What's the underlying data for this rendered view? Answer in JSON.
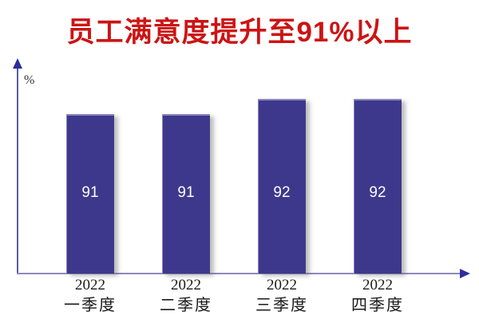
{
  "title": {
    "text": "员工满意度提升至91%以上",
    "color": "#cc1414"
  },
  "chart_data": {
    "type": "bar",
    "categories": [
      {
        "year": "2022",
        "quarter": "一季度"
      },
      {
        "year": "2022",
        "quarter": "二季度"
      },
      {
        "year": "2022",
        "quarter": "三季度"
      },
      {
        "year": "2022",
        "quarter": "四季度"
      }
    ],
    "values": [
      91,
      91,
      92,
      92
    ],
    "title": "员工满意度提升至91%以上",
    "xlabel": "",
    "ylabel": "%",
    "ylim": [
      80.5,
      94
    ],
    "grid": false,
    "legend": "none",
    "value_labels_shown": true,
    "colors": {
      "bar": "#3e388c",
      "value_label": "#ffffff",
      "axis_line": "#5a5aa8",
      "axis_arrow": "#2e2e9e",
      "tick_label": "#1a1a1a",
      "background": "#ffffff"
    }
  }
}
